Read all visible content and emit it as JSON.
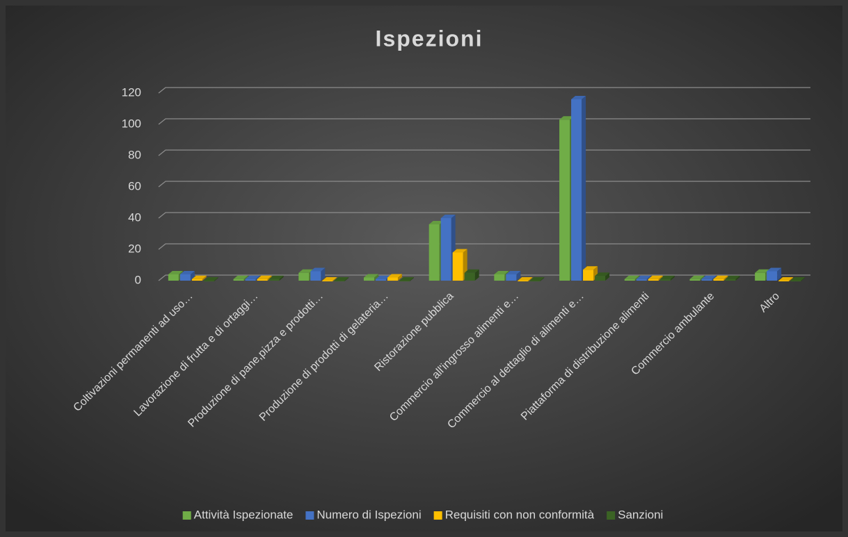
{
  "chart_data": {
    "type": "bar3d",
    "title": "Ispezioni",
    "categories": [
      "Coltivazioni permanenti ad uso…",
      "Lavorazione di frutta e di ortaggi…",
      "Produzione di pane,pizza e prodotti…",
      "Produzione di prodotti di gelateria…",
      "Ristorazione pubblica",
      "Commercio all'ingrosso alimenti e…",
      "Commercio al dettaglio di alimenti e…",
      "Piattaforma di distribuzione alimenti",
      "Commercio ambulante",
      "Altro"
    ],
    "series": [
      {
        "name": "Attività Ispezionate",
        "color": "#70ad47",
        "values": [
          4,
          1,
          5,
          2,
          36,
          4,
          103,
          1,
          1,
          5
        ]
      },
      {
        "name": "Numero di Ispezioni",
        "color": "#4472c4",
        "values": [
          4,
          1,
          6,
          1,
          40,
          4,
          116,
          1,
          1,
          6
        ]
      },
      {
        "name": "Requisiti con non conformità",
        "color": "#ffc000",
        "values": [
          1,
          1,
          0,
          2,
          18,
          0,
          7,
          1,
          1,
          0
        ]
      },
      {
        "name": "Sanzioni",
        "color": "#3b6324",
        "values": [
          0,
          1,
          0,
          0,
          5,
          0,
          3,
          1,
          1,
          0
        ]
      }
    ],
    "ylim": [
      0,
      120
    ],
    "yticks": [
      0,
      20,
      40,
      60,
      80,
      100,
      120
    ],
    "grid": true,
    "legend": "bottom"
  }
}
